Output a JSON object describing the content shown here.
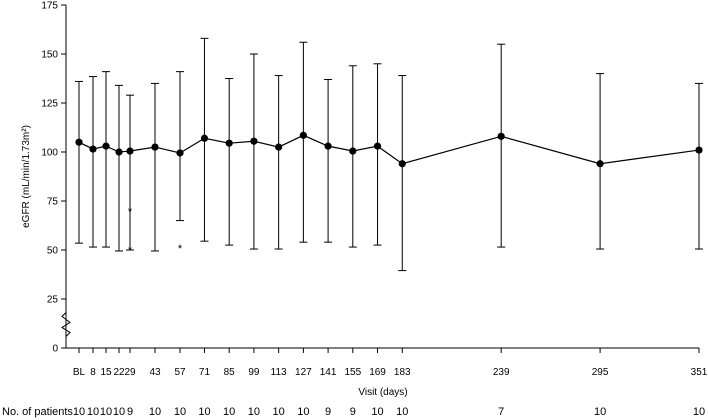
{
  "chart_data": {
    "type": "line",
    "xlabel": "Visit (days)",
    "ylabel": "eGFR (mL/min/1.73m²)",
    "ylim": [
      0,
      175
    ],
    "yticks": [
      0,
      25,
      50,
      75,
      100,
      125,
      150,
      175
    ],
    "axis_break": "y between 0 and 25",
    "x_tick_labels": [
      "BL",
      "8",
      "15",
      "22",
      "29",
      "43",
      "57",
      "71",
      "85",
      "99",
      "113",
      "127",
      "141",
      "155",
      "169",
      "183",
      "239",
      "295",
      "351"
    ],
    "series": [
      {
        "x": [
          0,
          8,
          15,
          22,
          29,
          43,
          57,
          71,
          85,
          99,
          113,
          127,
          141,
          155,
          169,
          183,
          239,
          295,
          351
        ],
        "mean": [
          105,
          101.5,
          103,
          100,
          100.5,
          102.5,
          99.5,
          107,
          104.5,
          105.5,
          102.5,
          108.5,
          103,
          100.5,
          103,
          94,
          108,
          94,
          101
        ],
        "upper": [
          136,
          138.5,
          141,
          134,
          129,
          135,
          141,
          158,
          137.5,
          150,
          139,
          156,
          137,
          144,
          145,
          139,
          155,
          140,
          135
        ],
        "lower": [
          53.5,
          51.5,
          51.5,
          49.5,
          50,
          49.5,
          65,
          54.5,
          52.5,
          50.5,
          50.5,
          54,
          54,
          51.5,
          52.5,
          39.5,
          51.5,
          50.5,
          50.5
        ]
      }
    ],
    "outliers": [
      {
        "x": 29,
        "y": 70
      },
      {
        "x": 29,
        "y": 50
      },
      {
        "x": 57,
        "y": 51
      }
    ],
    "outlier_symbol": "*",
    "grid": false,
    "patients": {
      "label": "No. of patients",
      "counts": [
        "10",
        "10",
        "10",
        "10",
        "9",
        "10",
        "10",
        "10",
        "10",
        "10",
        "10",
        "10",
        "9",
        "9",
        "10",
        "10",
        "7",
        "10",
        "10"
      ]
    }
  }
}
